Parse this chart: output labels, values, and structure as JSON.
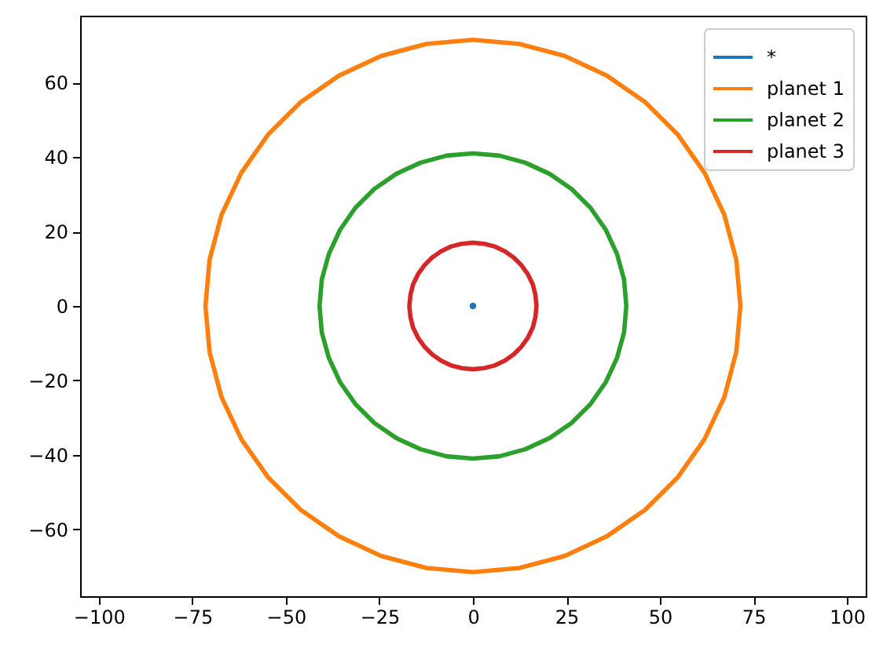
{
  "chart_data": {
    "type": "line",
    "legend": "top right",
    "xlim": [
      -105,
      105
    ],
    "ylim": [
      -78,
      78
    ],
    "xticks": [
      {
        "value": -100,
        "label": "−100"
      },
      {
        "value": -75,
        "label": "−75"
      },
      {
        "value": -50,
        "label": "−50"
      },
      {
        "value": -25,
        "label": "−25"
      },
      0,
      25,
      50,
      75,
      100
    ],
    "yticks": [
      {
        "value": -60,
        "label": "−60"
      },
      {
        "value": -40,
        "label": "−40"
      },
      {
        "value": -20,
        "label": "−20"
      },
      0,
      20,
      40,
      60
    ],
    "series": [
      {
        "name": "*",
        "color": "#1f77b4",
        "type": "scatter",
        "marker": "circle",
        "x": [
          0
        ],
        "values": [
          0
        ]
      },
      {
        "name": "planet 1",
        "color": "#ff7f0e",
        "x": [
          71.5,
          70.4,
          67.2,
          61.9,
          54.8,
          46.0,
          35.8,
          24.5,
          12.4,
          0,
          -12.4,
          -24.5,
          -35.8,
          -46.0,
          -54.8,
          -61.9,
          -67.2,
          -70.4,
          -71.5,
          -70.4,
          -67.2,
          -61.9,
          -54.8,
          -46.0,
          -35.8,
          -24.5,
          -12.4,
          0,
          12.4,
          24.5,
          35.8,
          46.0,
          54.8,
          61.9,
          67.2,
          70.4,
          71.5,
          70.4
        ],
        "values": [
          0,
          12.4,
          24.5,
          35.8,
          46.0,
          54.8,
          61.9,
          67.2,
          70.4,
          71.5,
          70.4,
          67.2,
          61.9,
          54.8,
          46.0,
          35.8,
          24.5,
          12.4,
          0,
          -12.4,
          -24.5,
          -35.8,
          -46.0,
          -54.8,
          -61.9,
          -67.2,
          -70.4,
          -71.5,
          -70.4,
          -67.2,
          -61.9,
          -54.8,
          -46.0,
          -35.8,
          -24.5,
          -12.4,
          0,
          12.4
        ]
      },
      {
        "name": "planet 2",
        "color": "#2ca02c",
        "x": [
          41,
          40.4,
          38.5,
          35.5,
          31.4,
          26.4,
          20.5,
          14.0,
          7.1,
          0,
          -7.1,
          -14.0,
          -20.5,
          -26.4,
          -31.4,
          -35.5,
          -38.5,
          -40.4,
          -41,
          -40.4,
          -38.5,
          -35.5,
          -31.4,
          -26.4,
          -20.5,
          -14.0,
          -7.1,
          0,
          7.1,
          14.0,
          20.5,
          26.4,
          31.4,
          35.5,
          38.5,
          40.4,
          41,
          40.4
        ],
        "values": [
          0,
          7.1,
          14.0,
          20.5,
          26.4,
          31.4,
          35.5,
          38.5,
          40.4,
          41,
          40.4,
          38.5,
          35.5,
          31.4,
          26.4,
          20.5,
          14.0,
          7.1,
          0,
          -7.1,
          -14.0,
          -20.5,
          -26.4,
          -31.4,
          -35.5,
          -38.5,
          -40.4,
          -41,
          -40.4,
          -38.5,
          -35.5,
          -31.4,
          -26.4,
          -20.5,
          -14.0,
          -7.1,
          0,
          7.1
        ]
      },
      {
        "name": "planet 3",
        "color": "#d62728",
        "x": [
          17,
          16.7,
          16.0,
          14.7,
          13.0,
          10.9,
          8.5,
          5.8,
          3.0,
          0,
          -3.0,
          -5.8,
          -8.5,
          -10.9,
          -13.0,
          -14.7,
          -16.0,
          -16.7,
          -17,
          -16.7,
          -16.0,
          -14.7,
          -13.0,
          -10.9,
          -8.5,
          -5.8,
          -3.0,
          0,
          3.0,
          5.8,
          8.5,
          10.9,
          13.0,
          14.7,
          16.0,
          16.7,
          17,
          16.7
        ],
        "values": [
          0,
          3.0,
          5.8,
          8.5,
          10.9,
          13.0,
          14.7,
          16.0,
          16.7,
          17,
          16.7,
          16.0,
          14.7,
          13.0,
          10.9,
          8.5,
          5.8,
          3.0,
          0,
          -3.0,
          -5.8,
          -8.5,
          -10.9,
          -13.0,
          -14.7,
          -16.0,
          -16.7,
          -17,
          -16.7,
          -16.0,
          -14.7,
          -13.0,
          -10.9,
          -8.5,
          -5.8,
          -3.0,
          0,
          3.0
        ]
      }
    ]
  }
}
